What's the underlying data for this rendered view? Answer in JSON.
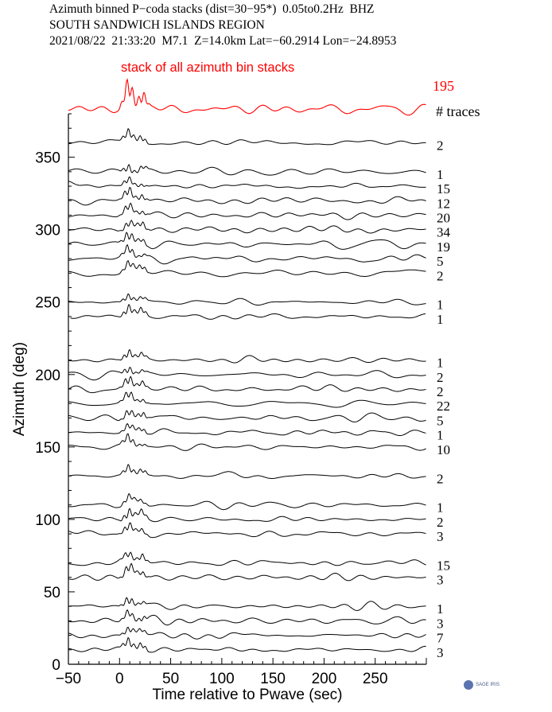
{
  "header": {
    "line1": "Azimuth binned P−coda stacks (dist=30−95*)  0.05to0.2Hz  BHZ",
    "line2": "SOUTH SANDWICH ISLANDS REGION",
    "line3": "2021/08/22  21:33:20  M7.1  Z=14.0km Lat=−60.2914 Lon=−24.8953"
  },
  "logo": {
    "text": "SAGE IRIS"
  },
  "chart_data": {
    "type": "line",
    "title": "",
    "xlabel": "Time relative to Pwave (sec)",
    "ylabel": "Azimuth (deg)",
    "xlim": [
      -50,
      300
    ],
    "ylim": [
      0,
      380
    ],
    "xticks": [
      -50,
      0,
      50,
      100,
      150,
      200,
      250
    ],
    "yticks": [
      0,
      50,
      100,
      150,
      200,
      250,
      300,
      350
    ],
    "trace_count_header": "# traces",
    "stack": {
      "label": "stack of all azimuth bin stacks",
      "count": "195",
      "color": "#ff0000"
    },
    "trace_color": "#000000",
    "series": [
      {
        "azimuth": 360,
        "count": "2"
      },
      {
        "azimuth": 340,
        "count": "1"
      },
      {
        "azimuth": 330,
        "count": "15"
      },
      {
        "azimuth": 320,
        "count": "12"
      },
      {
        "azimuth": 310,
        "count": "20"
      },
      {
        "azimuth": 300,
        "count": "34"
      },
      {
        "azimuth": 290,
        "count": "19"
      },
      {
        "azimuth": 280,
        "count": "5"
      },
      {
        "azimuth": 270,
        "count": "2"
      },
      {
        "azimuth": 250,
        "count": "1"
      },
      {
        "azimuth": 240,
        "count": "1"
      },
      {
        "azimuth": 210,
        "count": "1"
      },
      {
        "azimuth": 200,
        "count": "2"
      },
      {
        "azimuth": 190,
        "count": "2"
      },
      {
        "azimuth": 180,
        "count": "22"
      },
      {
        "azimuth": 170,
        "count": "5"
      },
      {
        "azimuth": 160,
        "count": "1"
      },
      {
        "azimuth": 150,
        "count": "10"
      },
      {
        "azimuth": 130,
        "count": "2"
      },
      {
        "azimuth": 110,
        "count": "1"
      },
      {
        "azimuth": 100,
        "count": "2"
      },
      {
        "azimuth": 90,
        "count": "3"
      },
      {
        "azimuth": 70,
        "count": "15"
      },
      {
        "azimuth": 60,
        "count": "3"
      },
      {
        "azimuth": 40,
        "count": "1"
      },
      {
        "azimuth": 30,
        "count": "3"
      },
      {
        "azimuth": 20,
        "count": "7"
      },
      {
        "azimuth": 10,
        "count": "3"
      }
    ]
  }
}
